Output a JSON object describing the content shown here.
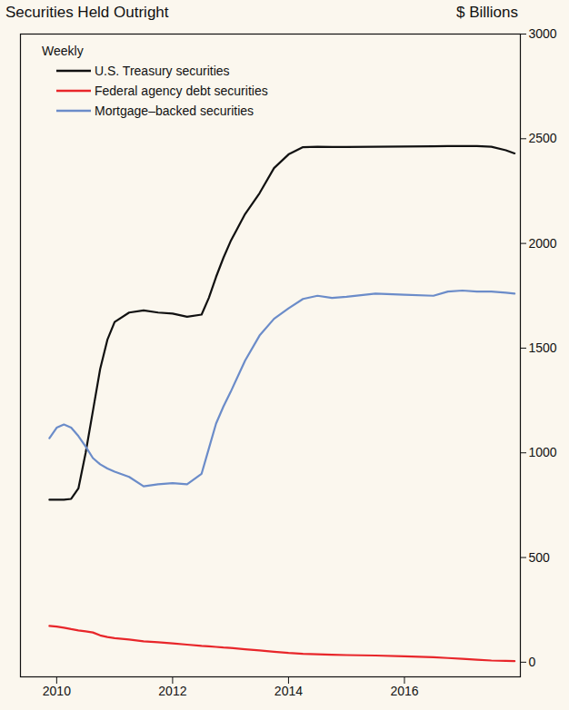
{
  "chart_data": {
    "type": "line",
    "title": "Securities Held Outright",
    "subtitle": "Weekly",
    "ylabel": "$ Billions",
    "x": [
      2009.875,
      2010.0,
      2010.125,
      2010.25,
      2010.375,
      2010.5,
      2010.625,
      2010.75,
      2010.875,
      2011.0,
      2011.25,
      2011.5,
      2011.75,
      2012.0,
      2012.25,
      2012.5,
      2012.625,
      2012.75,
      2012.875,
      2013.0,
      2013.25,
      2013.5,
      2013.75,
      2014.0,
      2014.25,
      2014.5,
      2014.75,
      2015.0,
      2015.5,
      2016.0,
      2016.5,
      2016.75,
      2017.0,
      2017.25,
      2017.5,
      2017.75,
      2017.9
    ],
    "series": [
      {
        "name": "U.S. Treasury securities",
        "color": "#111111",
        "values": [
          776,
          776,
          776,
          780,
          830,
          1000,
          1200,
          1400,
          1540,
          1625,
          1670,
          1680,
          1670,
          1665,
          1650,
          1660,
          1740,
          1840,
          1930,
          2010,
          2140,
          2240,
          2360,
          2425,
          2460,
          2462,
          2461,
          2461,
          2462,
          2463,
          2464,
          2465,
          2465,
          2465,
          2462,
          2445,
          2430
        ]
      },
      {
        "name": "Federal agency debt securities",
        "color": "#e8262a",
        "values": [
          173,
          170,
          165,
          158,
          152,
          147,
          142,
          128,
          120,
          115,
          108,
          100,
          95,
          90,
          84,
          78,
          76,
          73,
          70,
          68,
          62,
          56,
          50,
          44,
          40,
          38,
          36,
          34,
          32,
          28,
          24,
          20,
          16,
          12,
          8,
          6,
          5
        ]
      },
      {
        "name": "Mortgage–backed securities",
        "color": "#6b8cc9",
        "values": [
          1070,
          1120,
          1135,
          1120,
          1080,
          1030,
          975,
          945,
          925,
          910,
          885,
          840,
          850,
          855,
          850,
          900,
          1020,
          1140,
          1220,
          1290,
          1440,
          1560,
          1640,
          1690,
          1735,
          1750,
          1740,
          1745,
          1760,
          1755,
          1750,
          1770,
          1775,
          1770,
          1770,
          1765,
          1760
        ]
      }
    ],
    "xlim": [
      2009.375,
      2018
    ],
    "xticks": [
      2010,
      2012,
      2014,
      2016
    ],
    "ylim": [
      -70,
      3000
    ],
    "yticks": [
      0,
      500,
      1000,
      1500,
      2000,
      2500,
      3000
    ],
    "grid": false,
    "legend": "top-left"
  }
}
